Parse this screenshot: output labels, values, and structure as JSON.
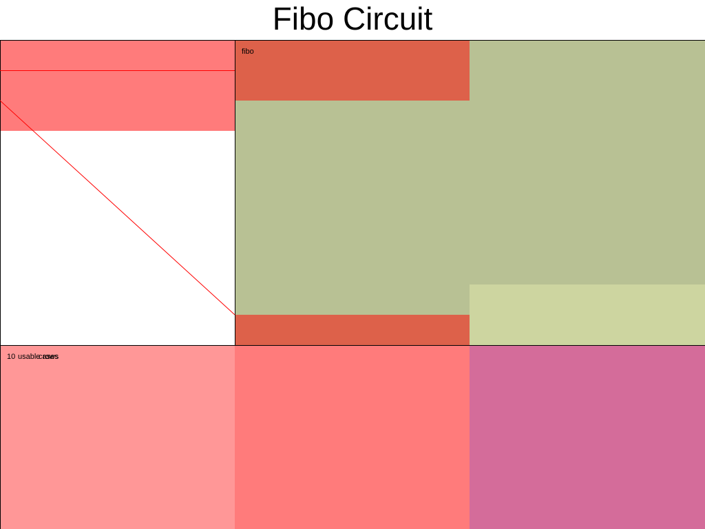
{
  "title": "Fibo Circuit",
  "labels": {
    "fibo": "fibo",
    "bottom_overlap": [
      "10",
      "usable",
      "rows",
      "cases"
    ]
  },
  "colors": {
    "salmon": "#ff7b7b",
    "red_block": "#dd614a",
    "sage": "#b8c194",
    "light_sage": "#cdd5a0",
    "pink": "#ff9797",
    "magenta": "#d46c9a",
    "wire": "#ff0000",
    "border": "#000000"
  }
}
